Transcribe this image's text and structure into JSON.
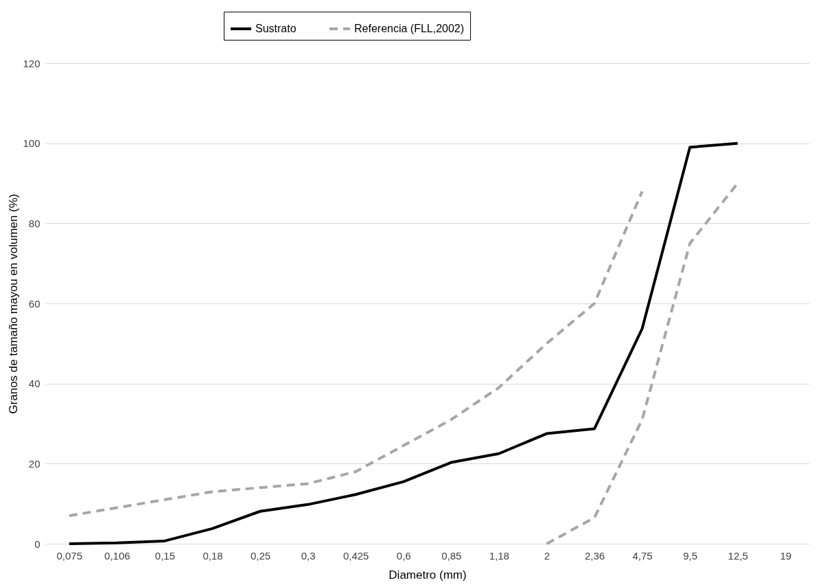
{
  "chart_data": {
    "type": "line",
    "xlabel": "Diametro (mm)",
    "ylabel": "Granos de tamaño mayou en volumen (%)",
    "categories": [
      "0,075",
      "0,106",
      "0,15",
      "0,18",
      "0,25",
      "0,3",
      "0,425",
      "0,6",
      "0,85",
      "1,18",
      "2",
      "2,36",
      "4,75",
      "9,5",
      "12,5",
      "19"
    ],
    "series": [
      {
        "name": "Sustrato",
        "color": "#000000",
        "line_style": "solid",
        "values": [
          0,
          0.2,
          0.7,
          3.8,
          8.1,
          9.8,
          12.3,
          15.5,
          20.3,
          22.5,
          27.5,
          28.7,
          53.7,
          99,
          100,
          null
        ]
      },
      {
        "name": "Referencia (FLL,2002)",
        "color": "#a6a6a6",
        "line_style": "dashed",
        "values": [
          7,
          9,
          11,
          13,
          14,
          15,
          18,
          24.5,
          31,
          39,
          50,
          60,
          88,
          null,
          null,
          null
        ]
      },
      {
        "color": "#a6a6a6",
        "line_style": "dashed",
        "values": [
          null,
          null,
          null,
          null,
          null,
          null,
          null,
          null,
          null,
          null,
          0,
          6.5,
          31,
          75,
          90,
          null
        ]
      }
    ],
    "ylim": [
      0,
      120
    ],
    "yticks": [
      0,
      20,
      40,
      60,
      80,
      100,
      120
    ],
    "grid": "y",
    "legend": "top"
  }
}
